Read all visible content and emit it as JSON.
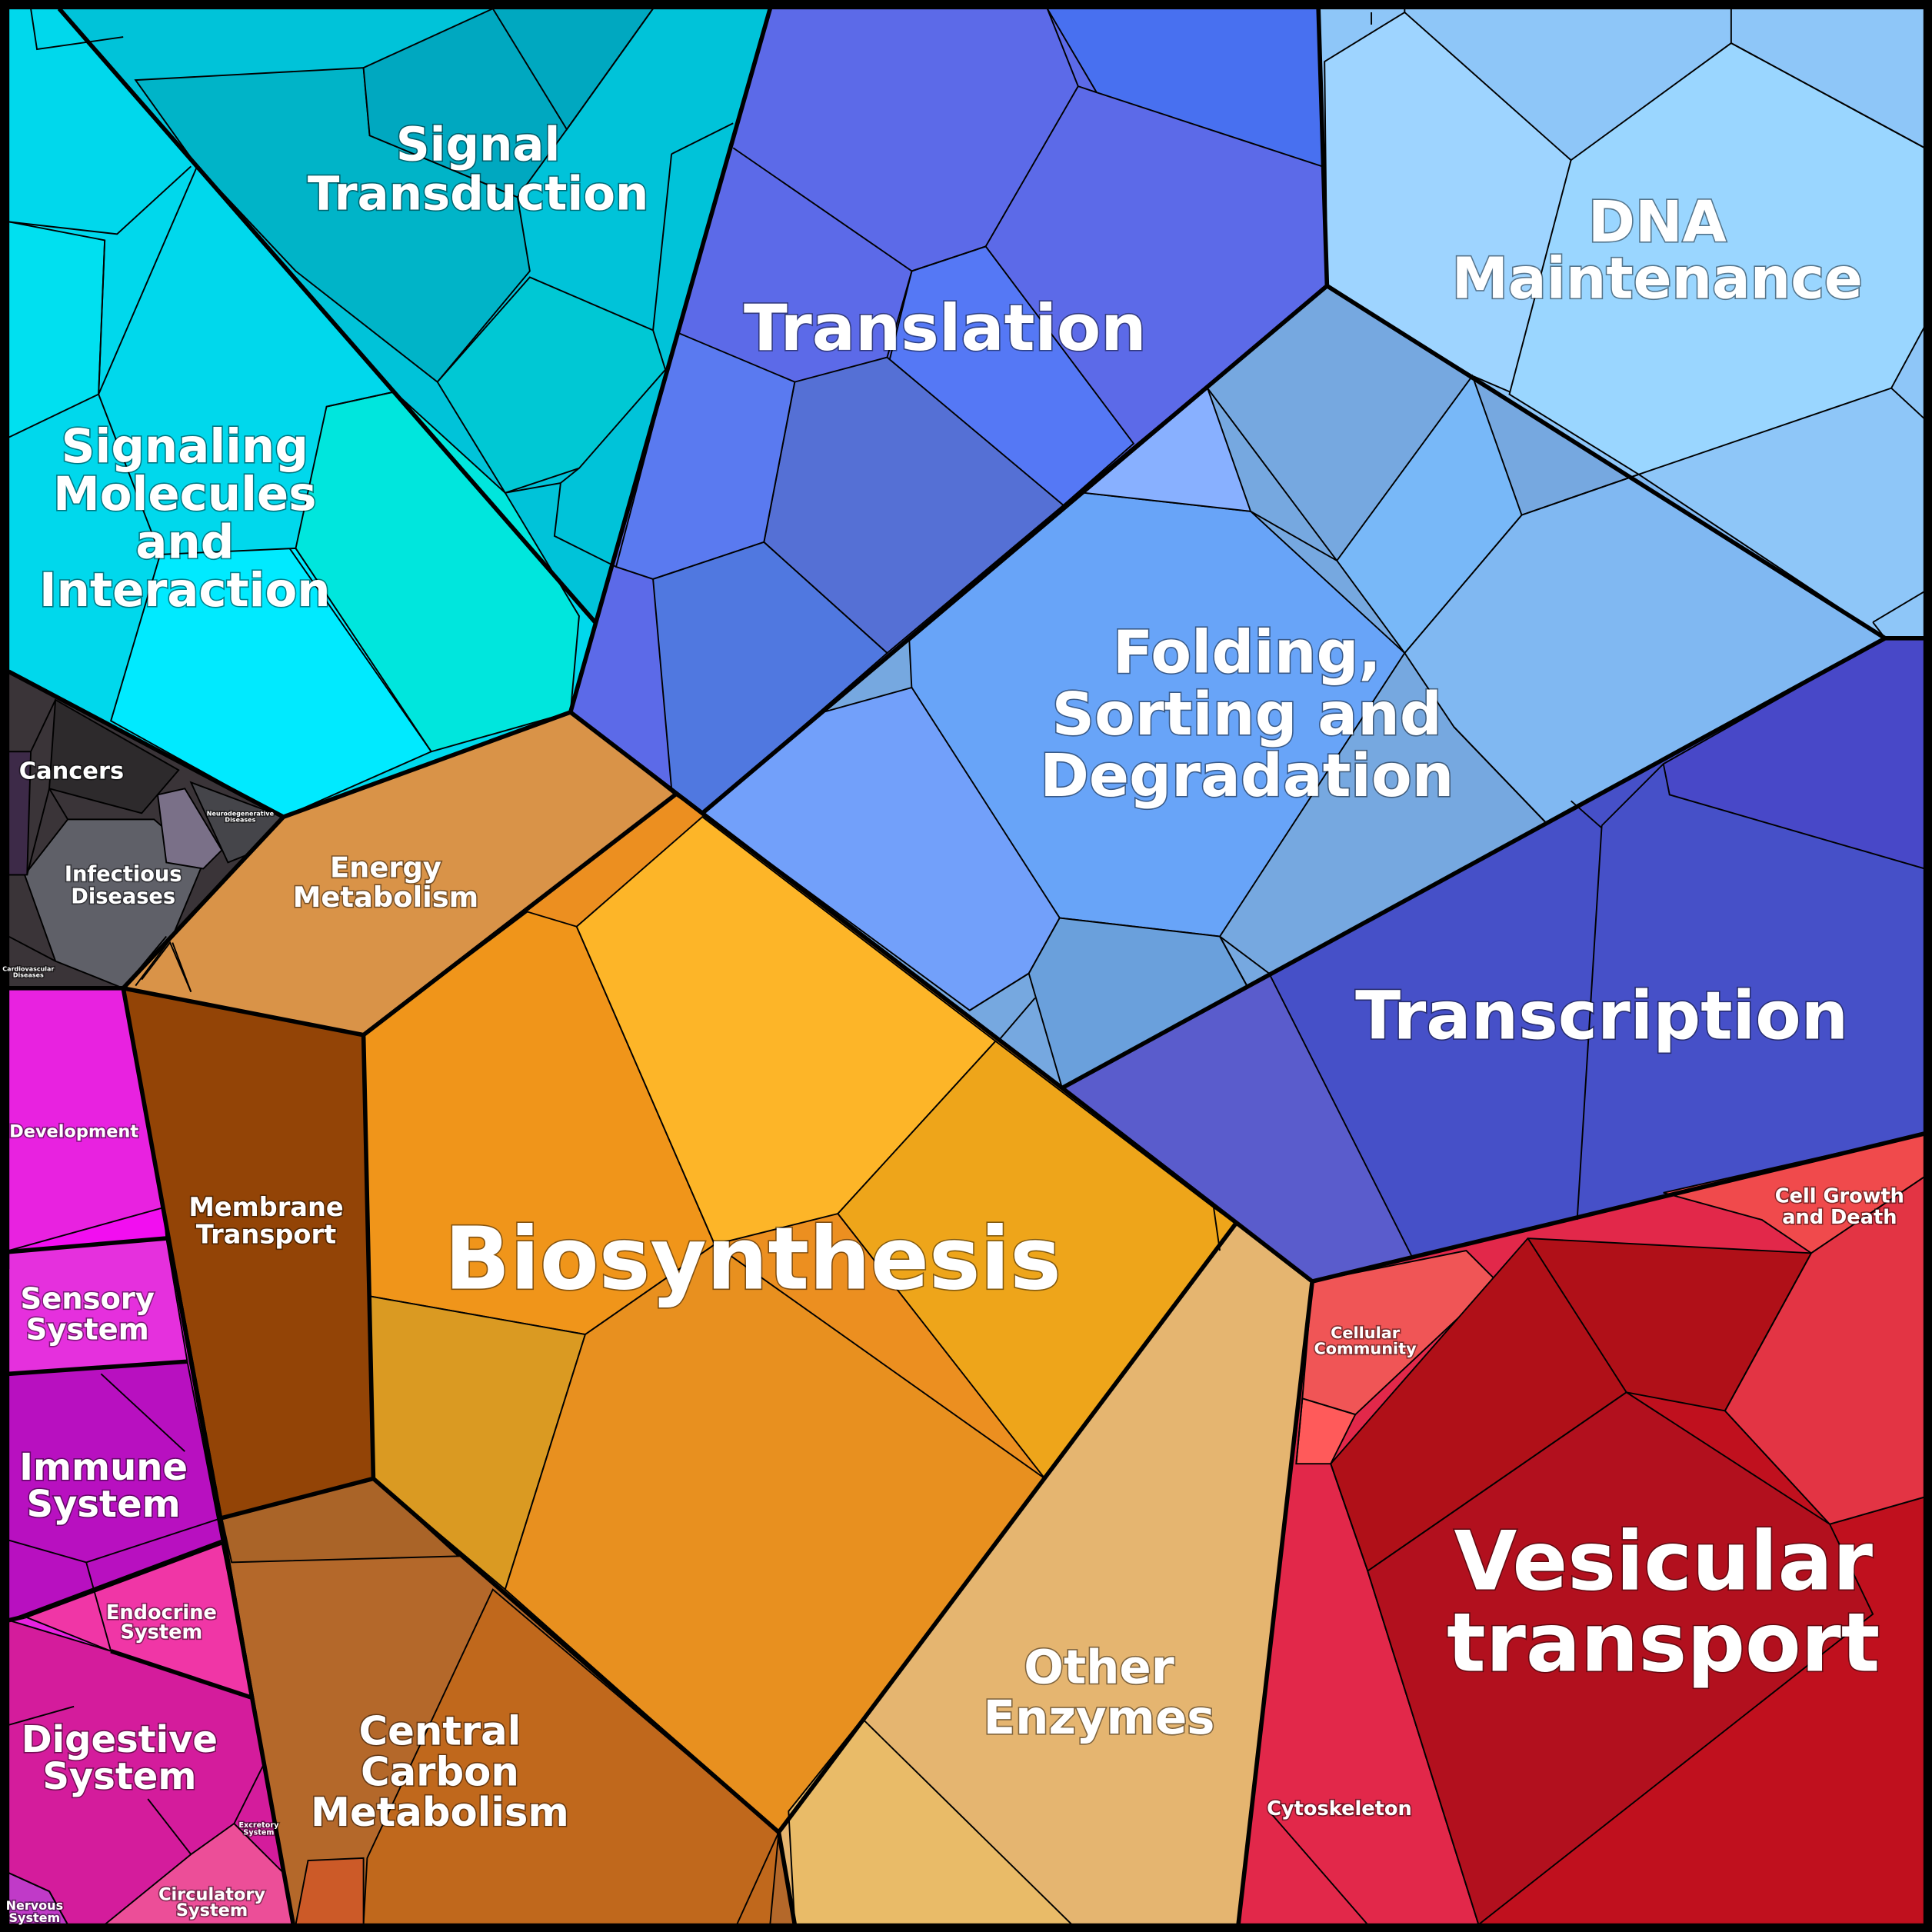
{
  "regions": [
    {
      "name": [
        "Signal",
        "Transduction"
      ]
    },
    {
      "name": [
        "Signaling",
        "Molecules",
        "and",
        "Interaction"
      ]
    },
    {
      "name": [
        "Translation"
      ]
    },
    {
      "name": [
        "DNA",
        "Maintenance"
      ]
    },
    {
      "name": [
        "Folding,",
        "Sorting and",
        "Degradation"
      ]
    },
    {
      "name": [
        "Transcription"
      ]
    },
    {
      "name": [
        "Cancers"
      ]
    },
    {
      "name": [
        "Infectious",
        "Diseases"
      ]
    },
    {
      "name": [
        "Neurodegenerative",
        "Diseases"
      ]
    },
    {
      "name": [
        "Cardiovascular",
        "Diseases"
      ]
    },
    {
      "name": [
        "Energy",
        "Metabolism"
      ]
    },
    {
      "name": [
        "Membrane",
        "Transport"
      ]
    },
    {
      "name": [
        "Biosynthesis"
      ]
    },
    {
      "name": [
        "Development"
      ]
    },
    {
      "name": [
        "Sensory",
        "System"
      ]
    },
    {
      "name": [
        "Immune",
        "System"
      ]
    },
    {
      "name": [
        "Endocrine",
        "System"
      ]
    },
    {
      "name": [
        "Digestive",
        "System"
      ]
    },
    {
      "name": [
        "Excretory",
        "System"
      ]
    },
    {
      "name": [
        "Circulatory",
        "System"
      ]
    },
    {
      "name": [
        "Nervous",
        "System"
      ]
    },
    {
      "name": [
        "Central",
        "Carbon",
        "Metabolism"
      ]
    },
    {
      "name": [
        "Other",
        "Enzymes"
      ]
    },
    {
      "name": [
        "Cellular",
        "Community"
      ]
    },
    {
      "name": [
        "Cytoskeleton"
      ]
    },
    {
      "name": [
        "Cell Growth",
        "and Death"
      ]
    },
    {
      "name": [
        "Vesicular",
        "transport"
      ]
    }
  ]
}
